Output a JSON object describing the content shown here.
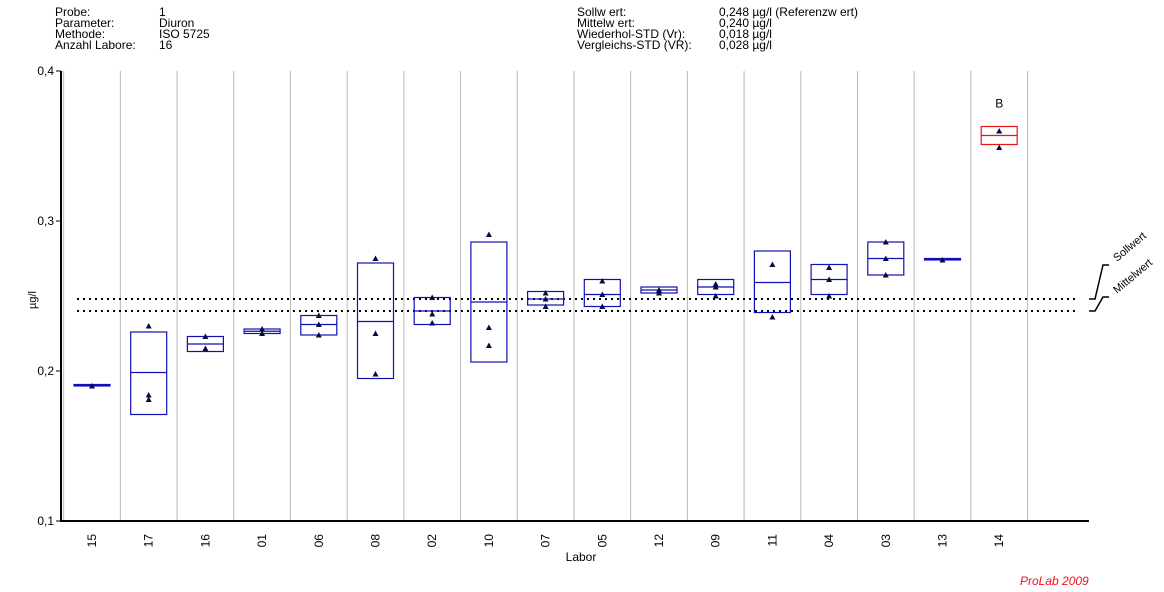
{
  "header_left": [
    {
      "label": "Probe:",
      "value": "1"
    },
    {
      "label": "Parameter:",
      "value": "Diuron"
    },
    {
      "label": "Methode:",
      "value": "ISO 5725"
    },
    {
      "label": "Anzahl Labore:",
      "value": "16"
    }
  ],
  "header_right": [
    {
      "label": "Sollw ert:",
      "value": "0,248 µg/l (Referenzw ert)"
    },
    {
      "label": "Mittelw ert:",
      "value": "0,240 µg/l"
    },
    {
      "label": "Wiederhol-STD (Vr):",
      "value": "0,018 µg/l"
    },
    {
      "label": "Vergleichs-STD (VR):",
      "value": "0,028 µg/l"
    }
  ],
  "footer": "ProLab 2009",
  "colors": {
    "box": "#1010b8",
    "outlier": "#e8141c",
    "marker": "#0a0a40"
  },
  "chart_data": {
    "type": "box",
    "xlabel": "Labor",
    "ylabel": "µg/l",
    "ylim": [
      0.1,
      0.4
    ],
    "yticks": [
      {
        "value": 0.1,
        "label": "0,1"
      },
      {
        "value": 0.2,
        "label": "0,2"
      },
      {
        "value": 0.3,
        "label": "0,3"
      },
      {
        "value": 0.4,
        "label": "0,4"
      }
    ],
    "reference_lines": [
      {
        "name": "Sollwert",
        "value": 0.248
      },
      {
        "name": "Mittelwert",
        "value": 0.24
      }
    ],
    "labs": [
      {
        "lab": "15",
        "low": 0.19,
        "high": 0.191,
        "mean": 0.1905,
        "points": [
          0.19
        ]
      },
      {
        "lab": "17",
        "low": 0.171,
        "high": 0.226,
        "mean": 0.199,
        "points": [
          0.23,
          0.184,
          0.181
        ]
      },
      {
        "lab": "16",
        "low": 0.213,
        "high": 0.223,
        "mean": 0.218,
        "points": [
          0.223,
          0.215
        ]
      },
      {
        "lab": "01",
        "low": 0.225,
        "high": 0.228,
        "mean": 0.2265,
        "points": [
          0.228,
          0.225
        ]
      },
      {
        "lab": "06",
        "low": 0.224,
        "high": 0.237,
        "mean": 0.231,
        "points": [
          0.237,
          0.231,
          0.224
        ]
      },
      {
        "lab": "08",
        "low": 0.195,
        "high": 0.272,
        "mean": 0.233,
        "points": [
          0.275,
          0.225,
          0.198
        ]
      },
      {
        "lab": "02",
        "low": 0.231,
        "high": 0.249,
        "mean": 0.24,
        "points": [
          0.249,
          0.238,
          0.232
        ]
      },
      {
        "lab": "10",
        "low": 0.206,
        "high": 0.286,
        "mean": 0.246,
        "points": [
          0.291,
          0.229,
          0.217
        ]
      },
      {
        "lab": "07",
        "low": 0.244,
        "high": 0.253,
        "mean": 0.248,
        "points": [
          0.252,
          0.248,
          0.243
        ]
      },
      {
        "lab": "05",
        "low": 0.243,
        "high": 0.261,
        "mean": 0.251,
        "points": [
          0.26,
          0.251,
          0.243
        ]
      },
      {
        "lab": "12",
        "low": 0.252,
        "high": 0.256,
        "mean": 0.254,
        "points": [
          0.254,
          0.252
        ]
      },
      {
        "lab": "09",
        "low": 0.251,
        "high": 0.261,
        "mean": 0.256,
        "points": [
          0.258,
          0.256,
          0.25
        ]
      },
      {
        "lab": "11",
        "low": 0.239,
        "high": 0.28,
        "mean": 0.259,
        "points": [
          0.271,
          0.236
        ]
      },
      {
        "lab": "04",
        "low": 0.251,
        "high": 0.271,
        "mean": 0.261,
        "points": [
          0.269,
          0.261,
          0.25
        ]
      },
      {
        "lab": "03",
        "low": 0.264,
        "high": 0.286,
        "mean": 0.275,
        "points": [
          0.286,
          0.275,
          0.264
        ]
      },
      {
        "lab": "13",
        "low": 0.274,
        "high": 0.275,
        "mean": 0.2745,
        "points": [
          0.274
        ]
      },
      {
        "lab": "14",
        "low": 0.351,
        "high": 0.363,
        "mean": 0.357,
        "points": [
          0.36,
          0.349
        ],
        "annotation": "B",
        "outlier": true
      }
    ]
  }
}
